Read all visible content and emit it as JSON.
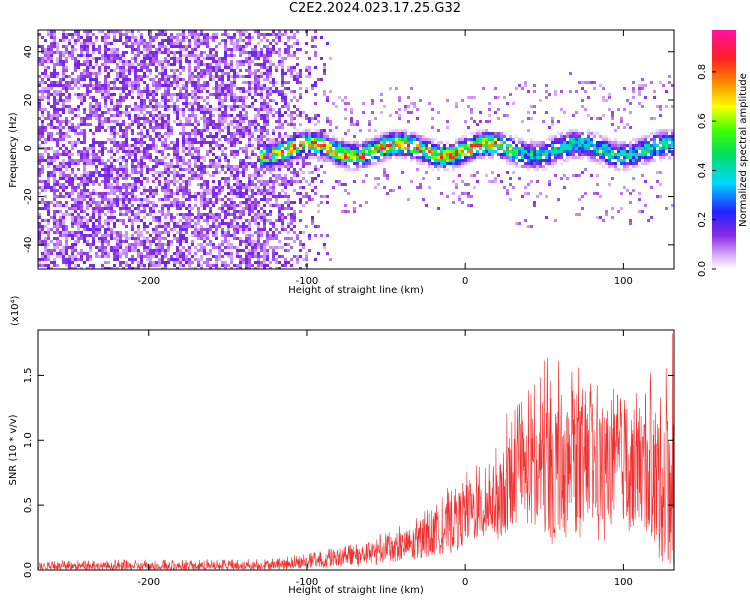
{
  "title": "C2E2.2024.023.17.25.G32",
  "colors": {
    "snr_line": "#f03030",
    "axis": "#000000",
    "background": "#ffffff"
  },
  "chart_data": [
    {
      "type": "heatmap",
      "xlabel": "Height of straight line (km)",
      "ylabel": "Frequency (Hz)",
      "xlim": [
        -270,
        132
      ],
      "ylim": [
        -50,
        49
      ],
      "xticks": [
        -200,
        -100,
        0,
        100
      ],
      "xtick_labels": [
        "-200",
        "-100",
        "0",
        "100"
      ],
      "yticks": [
        -40,
        -20,
        0,
        20,
        40
      ],
      "ytick_labels": [
        "-40",
        "-20",
        "0",
        "20",
        "40"
      ],
      "colorbar": {
        "label": "Normalized spectral amplitude",
        "range": [
          0,
          0.97
        ],
        "ticks": [
          0.0,
          0.2,
          0.4,
          0.6,
          0.8
        ],
        "tick_labels": [
          "0.0",
          "0.2",
          "0.4",
          "0.6",
          "0.8"
        ],
        "colormap": "rainbow (white-purple-blue-cyan-green-yellow-red-magenta)"
      },
      "description_regions": [
        {
          "x_range": [
            -270,
            -130
          ],
          "freq_band": [
            -50,
            49
          ],
          "amplitude": 0.1,
          "pattern": "broadband noise"
        },
        {
          "x_range": [
            -130,
            30
          ],
          "freq_center": 0,
          "freq_halfwidth": 8,
          "amplitude_peak": 0.85,
          "pattern": "narrow band"
        },
        {
          "x_range": [
            30,
            132
          ],
          "freq_center": 0,
          "freq_halfwidth": 10,
          "amplitude_peak": 0.5,
          "pattern": "narrow band"
        }
      ]
    },
    {
      "type": "line",
      "xlabel": "Height of straight line (km)",
      "ylabel": "SNR (10 * v/v)",
      "y_multiplier": "(x10⁴)",
      "xlim": [
        -270,
        132
      ],
      "ylim": [
        0,
        1.85
      ],
      "xticks": [
        -200,
        -100,
        0,
        100
      ],
      "xtick_labels": [
        "-200",
        "-100",
        "0",
        "100"
      ],
      "yticks": [
        0.0,
        0.5,
        1.0,
        1.5
      ],
      "ytick_labels": [
        "0.0",
        "0.5",
        "1.0",
        "1.5"
      ],
      "series": [
        {
          "envelope": {
            "x": [
              -270,
              -200,
              -150,
              -120,
              -100,
              -80,
              -60,
              -40,
              -20,
              -10,
              0,
              10,
              20,
              25,
              30,
              40,
              50,
              60,
              70,
              80,
              90,
              100,
              110,
              120,
              125,
              130
            ],
            "upper": [
              0.07,
              0.08,
              0.08,
              0.09,
              0.13,
              0.18,
              0.25,
              0.35,
              0.5,
              0.65,
              0.78,
              0.85,
              0.95,
              1.2,
              1.25,
              1.4,
              1.65,
              1.7,
              1.6,
              1.45,
              1.4,
              1.4,
              1.45,
              1.55,
              1.8,
              1.85
            ],
            "mean": [
              0.03,
              0.03,
              0.03,
              0.04,
              0.06,
              0.09,
              0.13,
              0.18,
              0.26,
              0.34,
              0.43,
              0.47,
              0.55,
              0.6,
              0.7,
              0.75,
              0.78,
              0.8,
              0.8,
              0.78,
              0.8,
              0.8,
              0.8,
              0.75,
              0.7,
              0.7
            ],
            "lower": [
              0.0,
              0.0,
              0.0,
              0.0,
              0.01,
              0.02,
              0.03,
              0.05,
              0.08,
              0.12,
              0.18,
              0.2,
              0.2,
              0.25,
              0.3,
              0.3,
              0.2,
              0.2,
              0.2,
              0.2,
              0.2,
              0.25,
              0.25,
              0.1,
              0.05,
              0.05
            ]
          }
        }
      ]
    }
  ]
}
